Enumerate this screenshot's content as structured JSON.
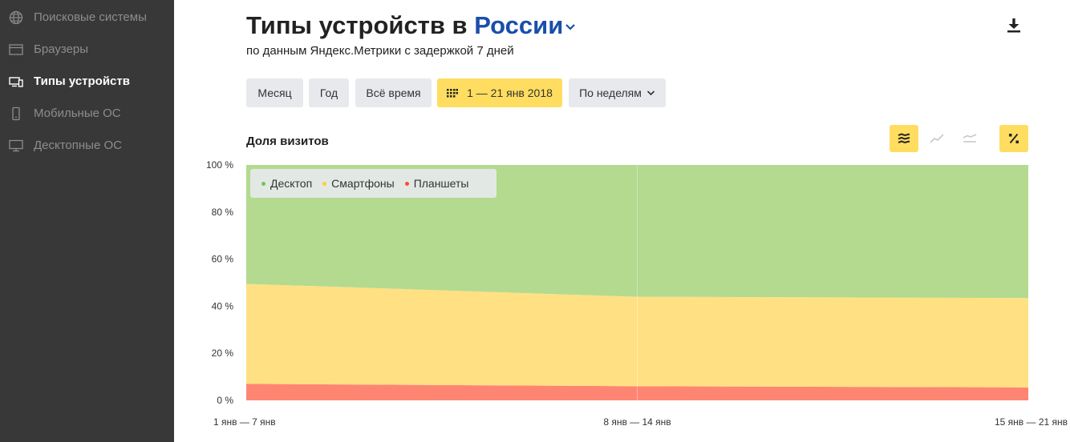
{
  "sidebar": {
    "items": [
      {
        "label": "Поисковые системы",
        "icon": "globe-icon",
        "active": false
      },
      {
        "label": "Браузеры",
        "icon": "browser-window-icon",
        "active": false
      },
      {
        "label": "Типы устройств",
        "icon": "devices-icon",
        "active": true
      },
      {
        "label": "Мобильные ОС",
        "icon": "phone-icon",
        "active": false
      },
      {
        "label": "Десктопные ОС",
        "icon": "monitor-icon",
        "active": false
      }
    ]
  },
  "header": {
    "title_prefix": "Типы устройств в",
    "region": "России",
    "subtitle": "по данным Яндекс.Метрики с задержкой 7 дней",
    "download_icon": "download-icon"
  },
  "toolbar": {
    "month": "Месяц",
    "year": "Год",
    "all_time": "Всё время",
    "date_range": "1 — 21 янв 2018",
    "grouping": "По неделям"
  },
  "section": {
    "title": "Доля визитов"
  },
  "chart_tools": [
    {
      "icon": "stacked-area-icon",
      "active": true
    },
    {
      "icon": "line-chart-icon",
      "active": false
    },
    {
      "icon": "area-chart-icon",
      "active": false
    },
    {
      "icon": "percent-icon",
      "active": true
    }
  ],
  "colors": {
    "desktop": "#b3da8f",
    "smartphones": "#ffe083",
    "tablets": "#ff8573",
    "accent_yellow": "#ffdd60",
    "link_blue": "#1a4eab"
  },
  "chart_data": {
    "type": "area",
    "stacked": true,
    "categories": [
      "1 янв — 7 янв",
      "8 янв — 14 янв",
      "15 янв — 21 янв"
    ],
    "yticks": [
      "0 %",
      "20 %",
      "40 %",
      "60 %",
      "80 %",
      "100 %"
    ],
    "ylim": [
      0,
      100
    ],
    "series": [
      {
        "name": "Планшеты",
        "values": [
          7,
          6,
          5.5
        ]
      },
      {
        "name": "Смартфоны",
        "values": [
          42.5,
          38,
          38
        ]
      },
      {
        "name": "Десктоп",
        "values": [
          50.5,
          56,
          56.5
        ]
      }
    ],
    "legend": [
      "Десктоп",
      "Смартфоны",
      "Планшеты"
    ],
    "legend_position": "top-left",
    "grid": false
  }
}
